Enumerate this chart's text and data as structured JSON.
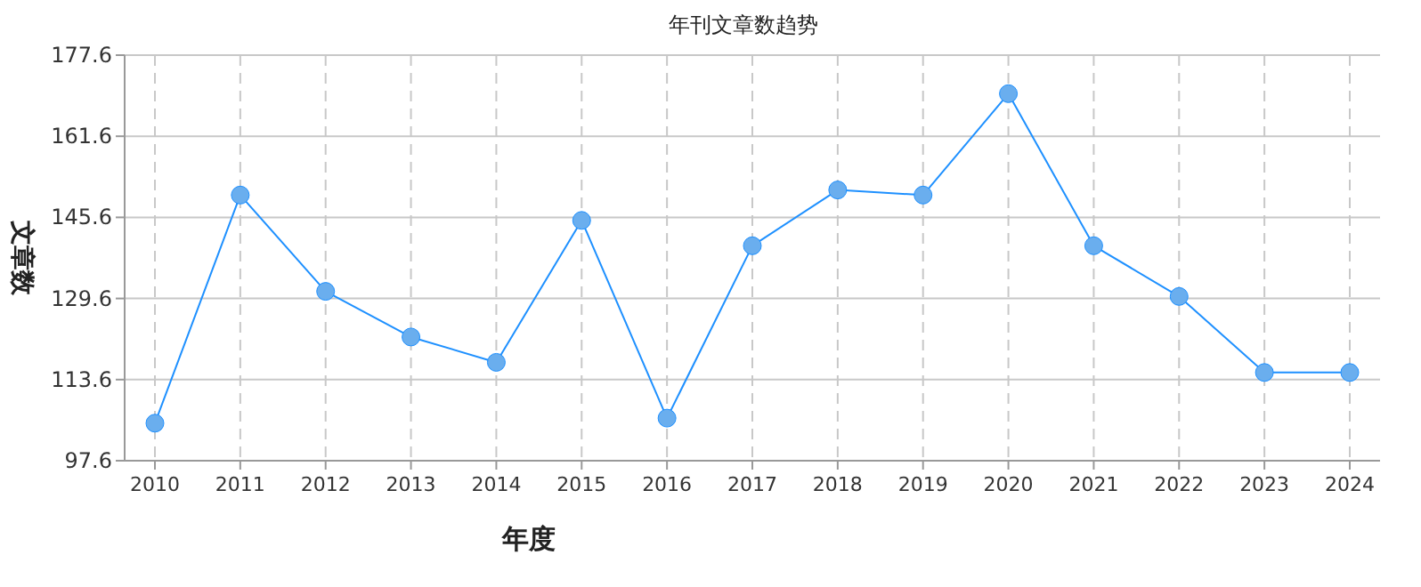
{
  "chart_data": {
    "type": "line",
    "title": "年刊文章数趋势",
    "xlabel": "年度",
    "ylabel": "文章数",
    "categories": [
      "2010",
      "2011",
      "2012",
      "2013",
      "2014",
      "2015",
      "2016",
      "2017",
      "2018",
      "2019",
      "2020",
      "2021",
      "2022",
      "2023",
      "2024"
    ],
    "series": [
      {
        "color": "#1e90ff",
        "values": [
          105,
          150,
          131,
          122,
          117,
          145,
          106,
          140,
          151,
          150,
          170,
          140,
          130,
          115,
          115
        ]
      }
    ],
    "ylim": [
      97.6,
      177.6
    ],
    "yticks": [
      97.6,
      113.6,
      129.6,
      145.6,
      161.6,
      177.6
    ],
    "grid": true,
    "marker": "circle",
    "line_style": "solid"
  }
}
